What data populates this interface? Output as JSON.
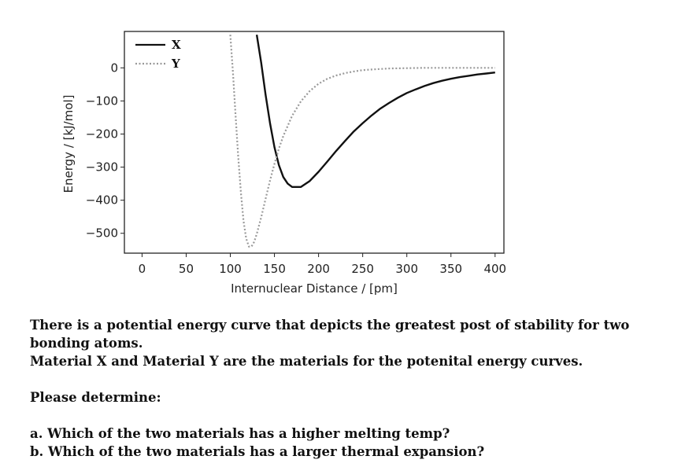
{
  "chart_data": {
    "type": "line",
    "title": "",
    "xlabel": "Internuclear Distance / [pm]",
    "ylabel": "Energy / [kJ/mol]",
    "xlim": [
      -20,
      410
    ],
    "ylim": [
      -560,
      110
    ],
    "xticks": [
      0,
      50,
      100,
      150,
      200,
      250,
      300,
      350,
      400
    ],
    "yticks": [
      0,
      -100,
      -200,
      -300,
      -400,
      -500
    ],
    "legend_position": "top-left",
    "series": [
      {
        "name": "X",
        "style": "solid",
        "color": "#111111",
        "x": [
          130,
          135,
          140,
          145,
          150,
          155,
          160,
          165,
          170,
          180,
          190,
          200,
          210,
          220,
          230,
          240,
          250,
          260,
          270,
          280,
          290,
          300,
          310,
          320,
          330,
          340,
          350,
          360,
          370,
          380,
          390,
          400
        ],
        "y": [
          100,
          16,
          -81,
          -168,
          -240,
          -294,
          -330,
          -350,
          -360,
          -360,
          -342,
          -314,
          -283,
          -251,
          -221,
          -192,
          -167,
          -144,
          -123,
          -106,
          -90,
          -76,
          -65,
          -55,
          -46,
          -39,
          -33,
          -28,
          -24,
          -20,
          -17,
          -14
        ]
      },
      {
        "name": "Y",
        "style": "dotted",
        "color": "#999999",
        "x": [
          100,
          103,
          106,
          109,
          112,
          115,
          118,
          121,
          124,
          127,
          130,
          135,
          140,
          145,
          150,
          155,
          160,
          170,
          180,
          190,
          200,
          210,
          220,
          230,
          240,
          250,
          260,
          280,
          300,
          320,
          340,
          360,
          380,
          400
        ],
        "y": [
          100,
          -16,
          -144,
          -270,
          -378,
          -463,
          -516,
          -540,
          -540,
          -526,
          -502,
          -452,
          -396,
          -340,
          -290,
          -244,
          -206,
          -145,
          -101,
          -70,
          -48,
          -33,
          -23,
          -16,
          -11,
          -7,
          -5,
          -2,
          -1,
          0,
          0,
          0,
          0,
          0
        ]
      }
    ]
  },
  "question": {
    "line1": "There is a potential energy curve that depicts the greatest post of stability for two bonding atoms.",
    "line2": "Material X and Material Y are the materials for the potenital energy curves.",
    "line3": "Please determine:",
    "line4": "a.  Which of the two materials has a higher melting temp?",
    "line5": "b. Which of the two materials has a larger thermal expansion?"
  }
}
